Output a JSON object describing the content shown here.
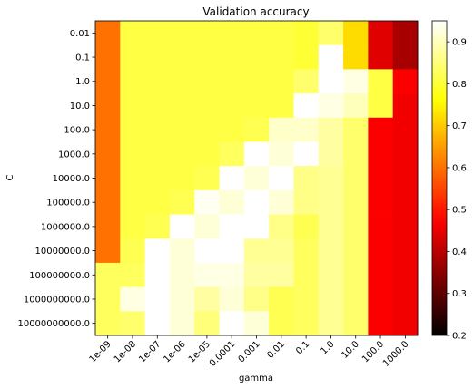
{
  "chart_data": {
    "type": "heatmap",
    "title": "Validation accuracy",
    "xlabel": "gamma",
    "ylabel": "C",
    "x_categories": [
      "1e-09",
      "1e-08",
      "1e-07",
      "1e-06",
      "1e-05",
      "0.0001",
      "0.001",
      "0.01",
      "0.1",
      "1.0",
      "10.0",
      "100.0",
      "1000.0"
    ],
    "y_categories": [
      "0.01",
      "0.1",
      "1.0",
      "10.0",
      "100.0",
      "1000.0",
      "10000.0",
      "100000.0",
      "1000000.0",
      "10000000.0",
      "100000000.0",
      "1000000000.0",
      "10000000000.0"
    ],
    "values": [
      [
        0.6,
        0.81,
        0.81,
        0.81,
        0.81,
        0.81,
        0.81,
        0.81,
        0.8,
        0.84,
        0.72,
        0.44,
        0.38
      ],
      [
        0.6,
        0.81,
        0.81,
        0.81,
        0.81,
        0.81,
        0.81,
        0.81,
        0.8,
        0.95,
        0.72,
        0.44,
        0.38
      ],
      [
        0.6,
        0.81,
        0.81,
        0.81,
        0.81,
        0.81,
        0.81,
        0.81,
        0.84,
        0.97,
        0.93,
        0.81,
        0.47
      ],
      [
        0.6,
        0.81,
        0.81,
        0.81,
        0.81,
        0.81,
        0.81,
        0.81,
        0.96,
        0.93,
        0.9,
        0.81,
        0.46
      ],
      [
        0.6,
        0.81,
        0.81,
        0.81,
        0.81,
        0.81,
        0.82,
        0.91,
        0.91,
        0.88,
        0.84,
        0.47,
        0.46
      ],
      [
        0.6,
        0.81,
        0.81,
        0.81,
        0.81,
        0.83,
        0.95,
        0.92,
        0.95,
        0.88,
        0.84,
        0.47,
        0.46
      ],
      [
        0.6,
        0.81,
        0.81,
        0.81,
        0.82,
        0.95,
        0.92,
        0.95,
        0.86,
        0.87,
        0.84,
        0.47,
        0.46
      ],
      [
        0.6,
        0.81,
        0.81,
        0.82,
        0.94,
        0.92,
        0.95,
        0.92,
        0.86,
        0.87,
        0.84,
        0.47,
        0.46
      ],
      [
        0.6,
        0.81,
        0.82,
        0.95,
        0.92,
        0.95,
        0.96,
        0.86,
        0.82,
        0.87,
        0.84,
        0.47,
        0.46
      ],
      [
        0.6,
        0.82,
        0.95,
        0.92,
        0.95,
        0.95,
        0.87,
        0.87,
        0.83,
        0.87,
        0.84,
        0.47,
        0.46
      ],
      [
        0.83,
        0.83,
        0.95,
        0.92,
        0.93,
        0.93,
        0.88,
        0.88,
        0.83,
        0.87,
        0.84,
        0.47,
        0.46
      ],
      [
        0.83,
        0.93,
        0.97,
        0.92,
        0.88,
        0.92,
        0.86,
        0.82,
        0.83,
        0.87,
        0.84,
        0.47,
        0.46
      ],
      [
        0.83,
        0.84,
        0.97,
        0.92,
        0.85,
        0.95,
        0.92,
        0.82,
        0.83,
        0.87,
        0.84,
        0.47,
        0.46
      ]
    ],
    "colormap": "hot",
    "vmin": 0.2,
    "vmax": 0.95,
    "colorbar_ticks": [
      "0.2",
      "0.3",
      "0.4",
      "0.5",
      "0.6",
      "0.7",
      "0.8",
      "0.9"
    ]
  }
}
